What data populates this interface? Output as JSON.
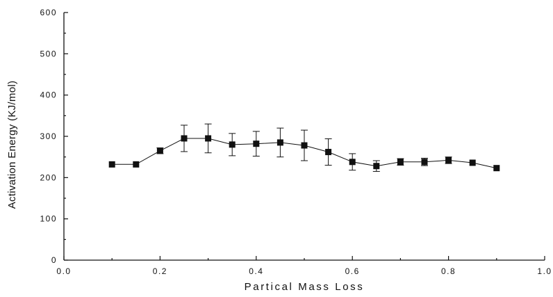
{
  "chart_data": {
    "type": "scatter",
    "title": "",
    "xlabel": "Partical Mass Loss",
    "ylabel": "Activation Energy (KJ/mol)",
    "xlim": [
      0.0,
      1.0
    ],
    "ylim": [
      0,
      600
    ],
    "x_ticks": [
      {
        "value": 0.0,
        "label": "0.0"
      },
      {
        "value": 0.2,
        "label": "0.2"
      },
      {
        "value": 0.4,
        "label": "0.4"
      },
      {
        "value": 0.6,
        "label": "0.6"
      },
      {
        "value": 0.8,
        "label": "0.8"
      },
      {
        "value": 1.0,
        "label": "1.0"
      }
    ],
    "y_ticks": [
      {
        "value": 0,
        "label": "0"
      },
      {
        "value": 100,
        "label": "100"
      },
      {
        "value": 200,
        "label": "200"
      },
      {
        "value": 300,
        "label": "300"
      },
      {
        "value": 400,
        "label": "400"
      },
      {
        "value": 500,
        "label": "500"
      },
      {
        "value": 600,
        "label": "600"
      }
    ],
    "grid": false,
    "legend": "none",
    "marker": "square",
    "line": "connected",
    "color": "#111111",
    "series": [
      {
        "x": [
          0.1,
          0.15,
          0.2,
          0.25,
          0.3,
          0.35,
          0.4,
          0.45,
          0.5,
          0.55,
          0.6,
          0.65,
          0.7,
          0.75,
          0.8,
          0.85,
          0.9
        ],
        "y": [
          232,
          232,
          265,
          295,
          295,
          280,
          282,
          285,
          278,
          262,
          238,
          228,
          238,
          238,
          242,
          236,
          223
        ],
        "error": [
          0,
          0,
          7,
          32,
          35,
          27,
          30,
          35,
          37,
          32,
          20,
          13,
          8,
          9,
          8,
          0,
          0
        ]
      }
    ]
  }
}
